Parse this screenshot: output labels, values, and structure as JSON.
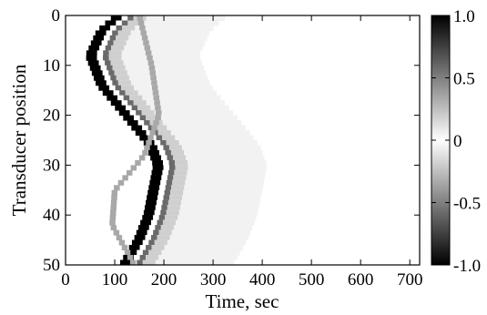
{
  "chart_data": {
    "type": "heatmap",
    "title": "",
    "xlabel": "Time, sec",
    "ylabel": "Transducer position",
    "xlim": [
      0,
      720
    ],
    "ylim": [
      0,
      50
    ],
    "y_direction": "top-to-bottom",
    "x_ticks": [
      0,
      100,
      200,
      300,
      400,
      500,
      600,
      700
    ],
    "y_ticks": [
      0,
      10,
      20,
      30,
      40,
      50
    ],
    "colorbar": {
      "colormap": "gray-reversed",
      "range": [
        -1.0,
        1.0
      ],
      "ticks": [
        1.0,
        0.5,
        0,
        -0.5,
        -1.0
      ],
      "tick_labels": [
        "1.0",
        "0.5",
        "0",
        "-0.5",
        "-1.0"
      ]
    },
    "pattern": {
      "description_points": "approx. arrival time of the main wavefront versus transducer position",
      "main_front": [
        {
          "position": 0,
          "time": 110
        },
        {
          "position": 3,
          "time": 75
        },
        {
          "position": 8,
          "time": 52
        },
        {
          "position": 14,
          "time": 75
        },
        {
          "position": 20,
          "time": 125
        },
        {
          "position": 26,
          "time": 175
        },
        {
          "position": 30,
          "time": 190
        },
        {
          "position": 35,
          "time": 180
        },
        {
          "position": 40,
          "time": 170
        },
        {
          "position": 45,
          "time": 150
        },
        {
          "position": 50,
          "time": 120
        }
      ],
      "secondary_front": [
        {
          "position": 0,
          "time": 150
        },
        {
          "position": 10,
          "time": 175
        },
        {
          "position": 20,
          "time": 190
        },
        {
          "position": 28,
          "time": 160
        },
        {
          "position": 35,
          "time": 100
        },
        {
          "position": 42,
          "time": 95
        },
        {
          "position": 50,
          "time": 140
        }
      ]
    }
  }
}
